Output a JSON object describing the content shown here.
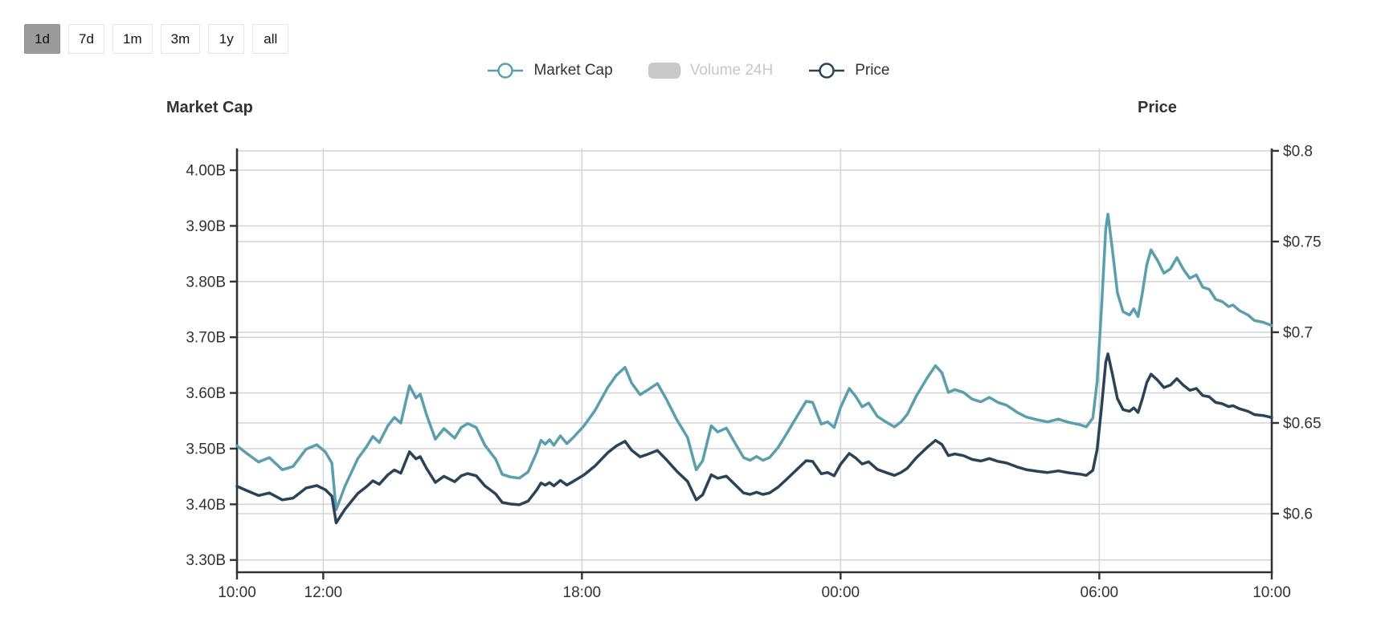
{
  "range_buttons": {
    "options": [
      "1d",
      "7d",
      "1m",
      "3m",
      "1y",
      "all"
    ],
    "selected": "1d"
  },
  "colors": {
    "background": "#ffffff",
    "grid": "#d6d6d6",
    "axis_line": "#333333",
    "text": "#333333",
    "market_cap_line": "#5B9FAC",
    "price_line": "#2B4257",
    "disabled_legend": "#C9C9C9",
    "selected_button_bg": "#9B9B9B"
  },
  "chart_data": {
    "type": "line",
    "left_axis": {
      "title": "Market Cap",
      "range": [
        3.278,
        4.039
      ],
      "ticks": [
        {
          "label": "4.00B",
          "value": 4.0
        },
        {
          "label": "3.90B",
          "value": 3.9
        },
        {
          "label": "3.80B",
          "value": 3.8
        },
        {
          "label": "3.70B",
          "value": 3.7
        },
        {
          "label": "3.60B",
          "value": 3.6
        },
        {
          "label": "3.50B",
          "value": 3.5
        },
        {
          "label": "3.40B",
          "value": 3.4
        },
        {
          "label": "3.30B",
          "value": 3.3
        }
      ]
    },
    "right_axis": {
      "title": "Price",
      "range": [
        0.5677,
        0.8013
      ],
      "ticks": [
        {
          "label": "$0.8",
          "value": 0.8
        },
        {
          "label": "$0.75",
          "value": 0.75
        },
        {
          "label": "$0.7",
          "value": 0.7
        },
        {
          "label": "$0.65",
          "value": 0.65
        },
        {
          "label": "$0.6",
          "value": 0.6
        }
      ]
    },
    "x_axis": {
      "range_hours": [
        0,
        24
      ],
      "ticks": [
        {
          "label": "10:00",
          "hour": 0
        },
        {
          "label": "12:00",
          "hour": 2
        },
        {
          "label": "18:00",
          "hour": 8
        },
        {
          "label": "00:00",
          "hour": 14
        },
        {
          "label": "06:00",
          "hour": 20
        },
        {
          "label": "10:00",
          "hour": 24
        }
      ]
    },
    "series": [
      {
        "name": "Market Cap",
        "axis": "left",
        "color": "#5B9FAC",
        "disabled": false,
        "points": [
          [
            0,
            3.505
          ],
          [
            0.2,
            3.493
          ],
          [
            0.5,
            3.476
          ],
          [
            0.75,
            3.484
          ],
          [
            1.05,
            3.462
          ],
          [
            1.3,
            3.468
          ],
          [
            1.6,
            3.499
          ],
          [
            1.85,
            3.507
          ],
          [
            2.05,
            3.494
          ],
          [
            2.2,
            3.474
          ],
          [
            2.3,
            3.39
          ],
          [
            2.5,
            3.432
          ],
          [
            2.8,
            3.482
          ],
          [
            3.0,
            3.503
          ],
          [
            3.15,
            3.522
          ],
          [
            3.3,
            3.511
          ],
          [
            3.5,
            3.541
          ],
          [
            3.65,
            3.556
          ],
          [
            3.8,
            3.546
          ],
          [
            4.0,
            3.613
          ],
          [
            4.15,
            3.591
          ],
          [
            4.25,
            3.598
          ],
          [
            4.4,
            3.56
          ],
          [
            4.6,
            3.517
          ],
          [
            4.8,
            3.536
          ],
          [
            5.05,
            3.519
          ],
          [
            5.2,
            3.538
          ],
          [
            5.35,
            3.545
          ],
          [
            5.55,
            3.538
          ],
          [
            5.75,
            3.506
          ],
          [
            6.0,
            3.481
          ],
          [
            6.15,
            3.454
          ],
          [
            6.35,
            3.449
          ],
          [
            6.55,
            3.447
          ],
          [
            6.75,
            3.458
          ],
          [
            6.95,
            3.493
          ],
          [
            7.05,
            3.515
          ],
          [
            7.15,
            3.508
          ],
          [
            7.25,
            3.516
          ],
          [
            7.35,
            3.506
          ],
          [
            7.5,
            3.523
          ],
          [
            7.65,
            3.509
          ],
          [
            7.8,
            3.52
          ],
          [
            8.05,
            3.541
          ],
          [
            8.3,
            3.568
          ],
          [
            8.6,
            3.61
          ],
          [
            8.8,
            3.632
          ],
          [
            9.0,
            3.646
          ],
          [
            9.15,
            3.618
          ],
          [
            9.35,
            3.597
          ],
          [
            9.5,
            3.604
          ],
          [
            9.75,
            3.617
          ],
          [
            9.95,
            3.59
          ],
          [
            10.2,
            3.552
          ],
          [
            10.45,
            3.52
          ],
          [
            10.65,
            3.462
          ],
          [
            10.8,
            3.478
          ],
          [
            11.0,
            3.541
          ],
          [
            11.15,
            3.53
          ],
          [
            11.35,
            3.537
          ],
          [
            11.55,
            3.51
          ],
          [
            11.75,
            3.484
          ],
          [
            11.9,
            3.479
          ],
          [
            12.05,
            3.486
          ],
          [
            12.2,
            3.479
          ],
          [
            12.35,
            3.484
          ],
          [
            12.55,
            3.502
          ],
          [
            12.75,
            3.527
          ],
          [
            12.95,
            3.553
          ],
          [
            13.2,
            3.585
          ],
          [
            13.35,
            3.583
          ],
          [
            13.55,
            3.544
          ],
          [
            13.7,
            3.548
          ],
          [
            13.85,
            3.538
          ],
          [
            14.0,
            3.574
          ],
          [
            14.2,
            3.608
          ],
          [
            14.35,
            3.594
          ],
          [
            14.5,
            3.575
          ],
          [
            14.65,
            3.582
          ],
          [
            14.85,
            3.558
          ],
          [
            15.05,
            3.548
          ],
          [
            15.25,
            3.539
          ],
          [
            15.4,
            3.548
          ],
          [
            15.55,
            3.562
          ],
          [
            15.75,
            3.594
          ],
          [
            16.0,
            3.626
          ],
          [
            16.2,
            3.649
          ],
          [
            16.35,
            3.636
          ],
          [
            16.5,
            3.601
          ],
          [
            16.65,
            3.606
          ],
          [
            16.85,
            3.601
          ],
          [
            17.05,
            3.589
          ],
          [
            17.25,
            3.584
          ],
          [
            17.45,
            3.592
          ],
          [
            17.65,
            3.583
          ],
          [
            17.85,
            3.578
          ],
          [
            18.1,
            3.565
          ],
          [
            18.3,
            3.557
          ],
          [
            18.55,
            3.552
          ],
          [
            18.8,
            3.548
          ],
          [
            19.05,
            3.553
          ],
          [
            19.3,
            3.547
          ],
          [
            19.55,
            3.543
          ],
          [
            19.7,
            3.539
          ],
          [
            19.85,
            3.555
          ],
          [
            19.95,
            3.62
          ],
          [
            20.05,
            3.75
          ],
          [
            20.15,
            3.895
          ],
          [
            20.2,
            3.921
          ],
          [
            20.3,
            3.86
          ],
          [
            20.42,
            3.78
          ],
          [
            20.55,
            3.746
          ],
          [
            20.7,
            3.74
          ],
          [
            20.8,
            3.751
          ],
          [
            20.9,
            3.737
          ],
          [
            21.0,
            3.78
          ],
          [
            21.1,
            3.83
          ],
          [
            21.2,
            3.857
          ],
          [
            21.35,
            3.838
          ],
          [
            21.5,
            3.815
          ],
          [
            21.65,
            3.823
          ],
          [
            21.8,
            3.843
          ],
          [
            21.95,
            3.822
          ],
          [
            22.1,
            3.806
          ],
          [
            22.25,
            3.812
          ],
          [
            22.4,
            3.79
          ],
          [
            22.55,
            3.786
          ],
          [
            22.7,
            3.768
          ],
          [
            22.85,
            3.764
          ],
          [
            23.0,
            3.755
          ],
          [
            23.1,
            3.758
          ],
          [
            23.25,
            3.748
          ],
          [
            23.45,
            3.74
          ],
          [
            23.6,
            3.73
          ],
          [
            23.8,
            3.727
          ],
          [
            24.0,
            3.721
          ]
        ]
      },
      {
        "name": "Volume 24H",
        "axis": "left",
        "color": "#C9C9C9",
        "disabled": true,
        "points": []
      },
      {
        "name": "Price",
        "axis": "right",
        "color": "#2B4257",
        "disabled": false,
        "points": [
          [
            0,
            0.6151
          ],
          [
            0.2,
            0.613
          ],
          [
            0.5,
            0.61
          ],
          [
            0.75,
            0.6114
          ],
          [
            1.05,
            0.6076
          ],
          [
            1.3,
            0.6086
          ],
          [
            1.6,
            0.6141
          ],
          [
            1.85,
            0.6155
          ],
          [
            2.05,
            0.6132
          ],
          [
            2.2,
            0.6097
          ],
          [
            2.3,
            0.5949
          ],
          [
            2.5,
            0.6023
          ],
          [
            2.8,
            0.6111
          ],
          [
            3.0,
            0.6148
          ],
          [
            3.15,
            0.6181
          ],
          [
            3.3,
            0.6162
          ],
          [
            3.5,
            0.6214
          ],
          [
            3.65,
            0.6241
          ],
          [
            3.8,
            0.6223
          ],
          [
            4.0,
            0.6341
          ],
          [
            4.15,
            0.6302
          ],
          [
            4.25,
            0.6314
          ],
          [
            4.4,
            0.6248
          ],
          [
            4.6,
            0.6172
          ],
          [
            4.8,
            0.6206
          ],
          [
            5.05,
            0.6176
          ],
          [
            5.2,
            0.6209
          ],
          [
            5.35,
            0.6221
          ],
          [
            5.55,
            0.6209
          ],
          [
            5.75,
            0.6153
          ],
          [
            6.0,
            0.6109
          ],
          [
            6.15,
            0.6062
          ],
          [
            6.35,
            0.6053
          ],
          [
            6.55,
            0.6049
          ],
          [
            6.75,
            0.6069
          ],
          [
            6.95,
            0.613
          ],
          [
            7.05,
            0.6169
          ],
          [
            7.15,
            0.6157
          ],
          [
            7.25,
            0.6171
          ],
          [
            7.35,
            0.6153
          ],
          [
            7.5,
            0.6183
          ],
          [
            7.65,
            0.6158
          ],
          [
            7.8,
            0.6178
          ],
          [
            8.05,
            0.6214
          ],
          [
            8.3,
            0.6262
          ],
          [
            8.6,
            0.6336
          ],
          [
            8.8,
            0.6374
          ],
          [
            9.0,
            0.6399
          ],
          [
            9.15,
            0.635
          ],
          [
            9.35,
            0.6313
          ],
          [
            9.5,
            0.6325
          ],
          [
            9.75,
            0.6348
          ],
          [
            9.95,
            0.63
          ],
          [
            10.2,
            0.6234
          ],
          [
            10.45,
            0.6178
          ],
          [
            10.65,
            0.6076
          ],
          [
            10.8,
            0.6104
          ],
          [
            11.0,
            0.6214
          ],
          [
            11.15,
            0.6195
          ],
          [
            11.35,
            0.6207
          ],
          [
            11.55,
            0.616
          ],
          [
            11.75,
            0.6114
          ],
          [
            11.9,
            0.6106
          ],
          [
            12.05,
            0.6118
          ],
          [
            12.2,
            0.6106
          ],
          [
            12.35,
            0.6114
          ],
          [
            12.55,
            0.6146
          ],
          [
            12.75,
            0.619
          ],
          [
            12.95,
            0.6236
          ],
          [
            13.2,
            0.6292
          ],
          [
            13.35,
            0.6288
          ],
          [
            13.55,
            0.622
          ],
          [
            13.7,
            0.6227
          ],
          [
            13.85,
            0.6209
          ],
          [
            14.0,
            0.6272
          ],
          [
            14.2,
            0.6332
          ],
          [
            14.35,
            0.6307
          ],
          [
            14.5,
            0.6274
          ],
          [
            14.65,
            0.6286
          ],
          [
            14.85,
            0.6244
          ],
          [
            15.05,
            0.6227
          ],
          [
            15.25,
            0.6211
          ],
          [
            15.4,
            0.6227
          ],
          [
            15.55,
            0.6251
          ],
          [
            15.75,
            0.6307
          ],
          [
            16.0,
            0.6364
          ],
          [
            16.2,
            0.6404
          ],
          [
            16.35,
            0.6381
          ],
          [
            16.5,
            0.632
          ],
          [
            16.65,
            0.6329
          ],
          [
            16.85,
            0.632
          ],
          [
            17.05,
            0.6299
          ],
          [
            17.25,
            0.629
          ],
          [
            17.45,
            0.6304
          ],
          [
            17.65,
            0.6288
          ],
          [
            17.85,
            0.6279
          ],
          [
            18.1,
            0.6257
          ],
          [
            18.3,
            0.6243
          ],
          [
            18.55,
            0.6234
          ],
          [
            18.8,
            0.6227
          ],
          [
            19.05,
            0.6236
          ],
          [
            19.3,
            0.6225
          ],
          [
            19.55,
            0.6218
          ],
          [
            19.7,
            0.6211
          ],
          [
            19.85,
            0.6239
          ],
          [
            19.95,
            0.6353
          ],
          [
            20.05,
            0.6581
          ],
          [
            20.15,
            0.6836
          ],
          [
            20.2,
            0.6881
          ],
          [
            20.3,
            0.6774
          ],
          [
            20.42,
            0.6634
          ],
          [
            20.55,
            0.6574
          ],
          [
            20.7,
            0.6564
          ],
          [
            20.8,
            0.6583
          ],
          [
            20.9,
            0.6558
          ],
          [
            21.0,
            0.6634
          ],
          [
            21.1,
            0.6722
          ],
          [
            21.2,
            0.6769
          ],
          [
            21.35,
            0.6736
          ],
          [
            21.5,
            0.6695
          ],
          [
            21.65,
            0.6709
          ],
          [
            21.8,
            0.6744
          ],
          [
            21.95,
            0.6708
          ],
          [
            22.1,
            0.668
          ],
          [
            22.25,
            0.669
          ],
          [
            22.4,
            0.6651
          ],
          [
            22.55,
            0.6644
          ],
          [
            22.7,
            0.6613
          ],
          [
            22.85,
            0.6606
          ],
          [
            23.0,
            0.659
          ],
          [
            23.1,
            0.6595
          ],
          [
            23.25,
            0.6578
          ],
          [
            23.45,
            0.6564
          ],
          [
            23.6,
            0.6546
          ],
          [
            23.8,
            0.6541
          ],
          [
            24.0,
            0.653
          ]
        ]
      }
    ]
  }
}
